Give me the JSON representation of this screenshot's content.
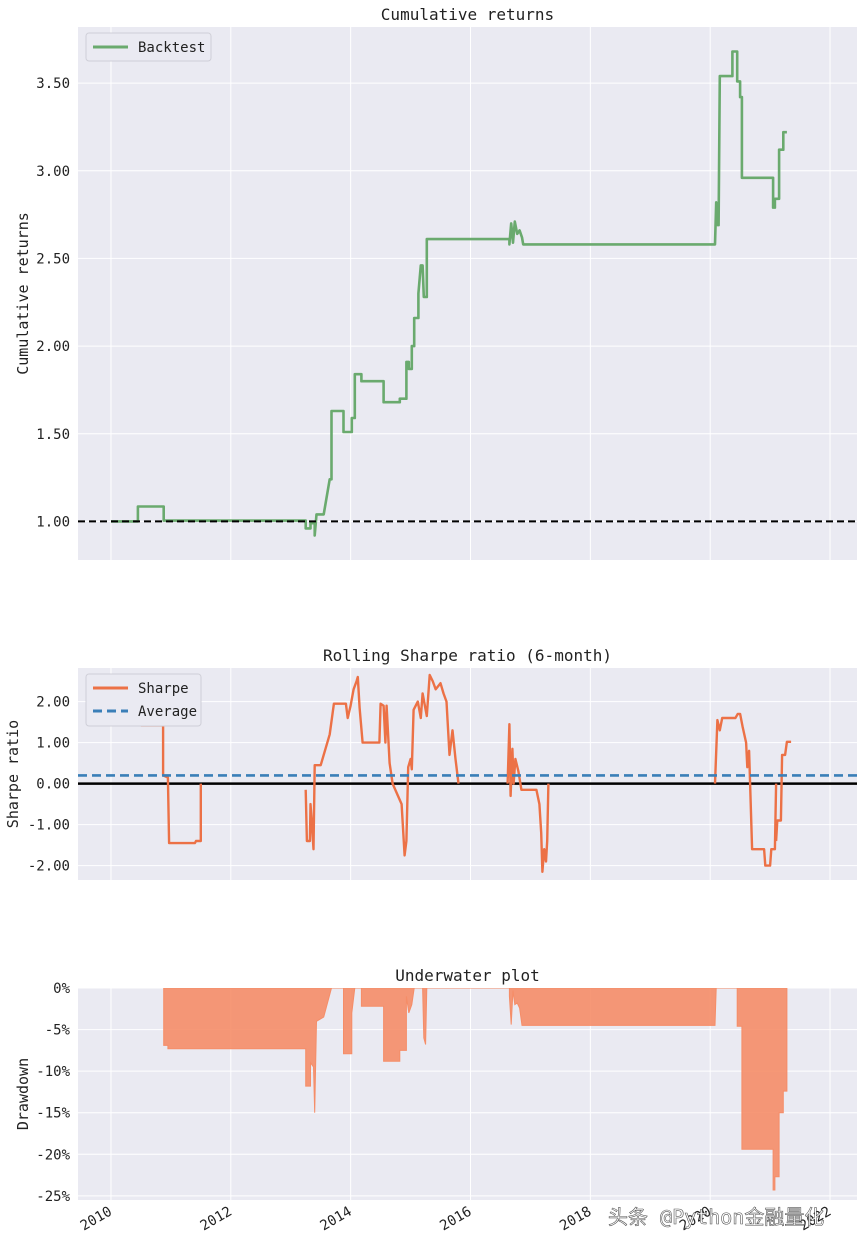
{
  "watermark": "头条 @Python金融量化",
  "colors": {
    "background": "#EAEAF2",
    "grid": "#FFFFFF",
    "backtest": "#6AAA6E",
    "sharpe": "#EC7146",
    "average": "#3A7FB8",
    "underwater_fill": "#F58D68",
    "baseline": "#000000"
  },
  "x_ticks": [
    "2010",
    "2012",
    "2014",
    "2016",
    "2018",
    "2020",
    "2022"
  ],
  "chart_data": [
    {
      "type": "line",
      "title": "Cumulative returns",
      "ylabel": "Cumulative returns",
      "xlabel": "",
      "xlim": [
        2009.45,
        2022.45
      ],
      "ylim": [
        0.78,
        3.82
      ],
      "y_ticks": [
        1.0,
        1.5,
        2.0,
        2.5,
        3.0,
        3.5
      ],
      "y_tick_labels": [
        "1.00",
        "1.50",
        "2.00",
        "2.50",
        "3.00",
        "3.50"
      ],
      "legend": [
        "Backtest"
      ],
      "legend_position": "top-left",
      "baseline": 1.0,
      "series": [
        {
          "name": "Backtest",
          "points": [
            [
              2010.0,
              1.0
            ],
            [
              2010.45,
              1.0
            ],
            [
              2010.45,
              1.085
            ],
            [
              2010.88,
              1.085
            ],
            [
              2010.88,
              1.005
            ],
            [
              2013.25,
              1.005
            ],
            [
              2013.25,
              0.96
            ],
            [
              2013.33,
              0.96
            ],
            [
              2013.33,
              0.99
            ],
            [
              2013.4,
              0.99
            ],
            [
              2013.4,
              0.92
            ],
            [
              2013.43,
              1.04
            ],
            [
              2013.55,
              1.04
            ],
            [
              2013.65,
              1.24
            ],
            [
              2013.68,
              1.24
            ],
            [
              2013.68,
              1.63
            ],
            [
              2013.88,
              1.63
            ],
            [
              2013.88,
              1.51
            ],
            [
              2014.02,
              1.51
            ],
            [
              2014.02,
              1.59
            ],
            [
              2014.07,
              1.59
            ],
            [
              2014.07,
              1.84
            ],
            [
              2014.18,
              1.84
            ],
            [
              2014.18,
              1.8
            ],
            [
              2014.55,
              1.8
            ],
            [
              2014.55,
              1.68
            ],
            [
              2014.82,
              1.68
            ],
            [
              2014.82,
              1.7
            ],
            [
              2014.93,
              1.7
            ],
            [
              2014.93,
              1.91
            ],
            [
              2014.97,
              1.91
            ],
            [
              2014.97,
              1.87
            ],
            [
              2015.02,
              1.87
            ],
            [
              2015.02,
              2.0
            ],
            [
              2015.06,
              2.0
            ],
            [
              2015.06,
              2.16
            ],
            [
              2015.13,
              2.16
            ],
            [
              2015.13,
              2.3
            ],
            [
              2015.17,
              2.46
            ],
            [
              2015.2,
              2.46
            ],
            [
              2015.22,
              2.28
            ],
            [
              2015.27,
              2.28
            ],
            [
              2015.27,
              2.61
            ],
            [
              2016.65,
              2.61
            ],
            [
              2016.65,
              2.58
            ],
            [
              2016.68,
              2.7
            ],
            [
              2016.71,
              2.59
            ],
            [
              2016.74,
              2.71
            ],
            [
              2016.78,
              2.64
            ],
            [
              2016.82,
              2.66
            ],
            [
              2016.86,
              2.62
            ],
            [
              2016.88,
              2.58
            ],
            [
              2020.08,
              2.58
            ],
            [
              2020.1,
              2.82
            ],
            [
              2020.12,
              2.69
            ],
            [
              2020.14,
              2.69
            ],
            [
              2020.16,
              3.54
            ],
            [
              2020.37,
              3.54
            ],
            [
              2020.37,
              3.68
            ],
            [
              2020.45,
              3.68
            ],
            [
              2020.45,
              3.51
            ],
            [
              2020.5,
              3.51
            ],
            [
              2020.5,
              3.42
            ],
            [
              2020.53,
              3.42
            ],
            [
              2020.53,
              2.96
            ],
            [
              2021.0,
              2.96
            ],
            [
              2021.05,
              2.96
            ],
            [
              2021.05,
              2.79
            ],
            [
              2021.08,
              2.79
            ],
            [
              2021.08,
              2.84
            ],
            [
              2021.15,
              2.84
            ],
            [
              2021.15,
              3.12
            ],
            [
              2021.22,
              3.12
            ],
            [
              2021.22,
              3.22
            ],
            [
              2021.28,
              3.22
            ]
          ]
        }
      ]
    },
    {
      "type": "line",
      "title": "Rolling Sharpe ratio (6-month)",
      "ylabel": "Sharpe ratio",
      "xlabel": "",
      "xlim": [
        2009.45,
        2022.45
      ],
      "ylim": [
        -2.35,
        2.82
      ],
      "y_ticks": [
        -2.0,
        -1.0,
        0.0,
        1.0,
        2.0
      ],
      "y_tick_labels": [
        "-2.00",
        "-1.00",
        "0.00",
        "1.00",
        "2.00"
      ],
      "legend": [
        "Sharpe",
        "Average"
      ],
      "legend_position": "top-left",
      "average": 0.2,
      "baseline": 0.0,
      "series": [
        {
          "name": "Sharpe",
          "points": [
            [
              2010.5,
              1.42
            ],
            [
              2010.87,
              1.42
            ],
            [
              2010.87,
              0.2
            ],
            [
              2010.95,
              0.15
            ],
            [
              2010.97,
              -1.45
            ],
            [
              2011.4,
              -1.45
            ],
            [
              2011.42,
              -1.4
            ],
            [
              2011.5,
              -1.4
            ],
            [
              2011.5,
              0.0
            ]
          ]
        },
        {
          "name": "Sharpe",
          "points": [
            [
              2013.25,
              -0.15
            ],
            [
              2013.27,
              -1.4
            ],
            [
              2013.32,
              -1.4
            ],
            [
              2013.33,
              -0.5
            ],
            [
              2013.35,
              -0.9
            ],
            [
              2013.38,
              -1.6
            ],
            [
              2013.4,
              0.45
            ],
            [
              2013.5,
              0.45
            ],
            [
              2013.65,
              1.2
            ],
            [
              2013.72,
              1.95
            ],
            [
              2013.92,
              1.95
            ],
            [
              2013.95,
              1.6
            ],
            [
              2014.0,
              1.9
            ],
            [
              2014.05,
              2.3
            ],
            [
              2014.1,
              2.5
            ],
            [
              2014.12,
              2.6
            ],
            [
              2014.15,
              1.85
            ],
            [
              2014.2,
              1.0
            ],
            [
              2014.48,
              1.0
            ],
            [
              2014.5,
              1.95
            ],
            [
              2014.55,
              1.9
            ],
            [
              2014.58,
              1.0
            ],
            [
              2014.6,
              1.9
            ],
            [
              2014.65,
              0.5
            ],
            [
              2014.7,
              0.0
            ],
            [
              2014.85,
              -0.5
            ],
            [
              2014.9,
              -1.75
            ],
            [
              2014.93,
              -1.4
            ],
            [
              2014.96,
              0.4
            ],
            [
              2015.0,
              0.6
            ],
            [
              2015.02,
              0.35
            ],
            [
              2015.05,
              1.8
            ],
            [
              2015.12,
              2.0
            ],
            [
              2015.17,
              1.6
            ],
            [
              2015.2,
              2.2
            ],
            [
              2015.27,
              1.65
            ],
            [
              2015.32,
              2.65
            ],
            [
              2015.37,
              2.5
            ],
            [
              2015.42,
              2.3
            ],
            [
              2015.5,
              2.45
            ],
            [
              2015.55,
              2.2
            ],
            [
              2015.6,
              2.0
            ],
            [
              2015.65,
              0.7
            ],
            [
              2015.7,
              1.3
            ],
            [
              2015.75,
              0.6
            ],
            [
              2015.8,
              0.0
            ]
          ]
        },
        {
          "name": "Sharpe",
          "points": [
            [
              2016.62,
              0.0
            ],
            [
              2016.65,
              1.45
            ],
            [
              2016.67,
              -0.3
            ],
            [
              2016.7,
              0.85
            ],
            [
              2016.72,
              0.0
            ],
            [
              2016.75,
              0.6
            ],
            [
              2016.8,
              0.3
            ],
            [
              2016.85,
              -0.15
            ],
            [
              2017.1,
              -0.15
            ],
            [
              2017.15,
              -0.5
            ],
            [
              2017.18,
              -1.2
            ],
            [
              2017.2,
              -2.15
            ],
            [
              2017.23,
              -1.6
            ],
            [
              2017.26,
              -1.9
            ],
            [
              2017.28,
              -1.4
            ],
            [
              2017.3,
              0.0
            ]
          ]
        },
        {
          "name": "Sharpe",
          "points": [
            [
              2020.08,
              0.0
            ],
            [
              2020.12,
              1.55
            ],
            [
              2020.16,
              1.3
            ],
            [
              2020.2,
              1.6
            ],
            [
              2020.42,
              1.6
            ],
            [
              2020.46,
              1.7
            ],
            [
              2020.5,
              1.7
            ],
            [
              2020.54,
              1.4
            ],
            [
              2020.6,
              1.0
            ],
            [
              2020.62,
              0.4
            ],
            [
              2020.65,
              0.8
            ],
            [
              2020.7,
              -1.6
            ],
            [
              2020.9,
              -1.6
            ],
            [
              2020.92,
              -2.0
            ],
            [
              2021.0,
              -2.0
            ],
            [
              2021.02,
              -1.6
            ],
            [
              2021.08,
              -1.6
            ],
            [
              2021.1,
              0.0
            ]
          ]
        },
        {
          "name": "Sharpe",
          "points": [
            [
              2021.1,
              -1.4
            ],
            [
              2021.12,
              -0.9
            ],
            [
              2021.18,
              -0.9
            ],
            [
              2021.2,
              0.7
            ],
            [
              2021.25,
              0.7
            ],
            [
              2021.28,
              1.02
            ],
            [
              2021.35,
              1.02
            ]
          ]
        }
      ]
    },
    {
      "type": "area",
      "title": "Underwater plot",
      "ylabel": "Drawdown",
      "xlabel": "",
      "xlim": [
        2009.45,
        2022.45
      ],
      "ylim": [
        -25.5,
        0.0
      ],
      "y_ticks": [
        0,
        -5,
        -10,
        -15,
        -20,
        -25
      ],
      "y_tick_labels": [
        "0%",
        "-5%",
        "-10%",
        "-15%",
        "-20%",
        "-25%"
      ],
      "series": [
        {
          "name": "Drawdown (%)",
          "points": [
            [
              2010.88,
              0.0
            ],
            [
              2010.88,
              -6.9
            ],
            [
              2010.95,
              -6.9
            ],
            [
              2010.95,
              -7.3
            ],
            [
              2013.25,
              -7.3
            ],
            [
              2013.25,
              -11.8
            ],
            [
              2013.33,
              -11.8
            ],
            [
              2013.33,
              -9.0
            ],
            [
              2013.38,
              -9.5
            ],
            [
              2013.4,
              -15.0
            ],
            [
              2013.43,
              -4.0
            ],
            [
              2013.55,
              -3.5
            ],
            [
              2013.68,
              0.0
            ],
            [
              2013.88,
              0.0
            ],
            [
              2013.88,
              -7.9
            ],
            [
              2014.02,
              -7.9
            ],
            [
              2014.02,
              -3.0
            ],
            [
              2014.07,
              0.0
            ],
            [
              2014.18,
              0.0
            ],
            [
              2014.18,
              -2.2
            ],
            [
              2014.55,
              -2.2
            ],
            [
              2014.55,
              -8.8
            ],
            [
              2014.82,
              -8.8
            ],
            [
              2014.82,
              -7.5
            ],
            [
              2014.93,
              -7.5
            ],
            [
              2014.93,
              -1.0
            ],
            [
              2014.97,
              -3.0
            ],
            [
              2015.02,
              -2.0
            ],
            [
              2015.06,
              0.0
            ],
            [
              2015.2,
              0.0
            ],
            [
              2015.22,
              -6.0
            ],
            [
              2015.25,
              -6.8
            ],
            [
              2015.27,
              0.0
            ],
            [
              2016.65,
              0.0
            ],
            [
              2016.65,
              -1.0
            ],
            [
              2016.68,
              -4.4
            ],
            [
              2016.71,
              -0.3
            ],
            [
              2016.74,
              -2.0
            ],
            [
              2016.78,
              -1.8
            ],
            [
              2016.82,
              -2.4
            ],
            [
              2016.86,
              -4.5
            ],
            [
              2020.08,
              -4.5
            ],
            [
              2020.1,
              0.0
            ],
            [
              2020.37,
              0.0
            ],
            [
              2020.45,
              0.0
            ],
            [
              2020.45,
              -4.6
            ],
            [
              2020.53,
              -4.6
            ],
            [
              2020.53,
              -19.4
            ],
            [
              2021.05,
              -19.4
            ],
            [
              2021.05,
              -24.3
            ],
            [
              2021.08,
              -24.3
            ],
            [
              2021.08,
              -22.7
            ],
            [
              2021.15,
              -22.7
            ],
            [
              2021.15,
              -15.0
            ],
            [
              2021.22,
              -15.0
            ],
            [
              2021.22,
              -12.4
            ],
            [
              2021.28,
              -12.4
            ],
            [
              2021.28,
              0.0
            ]
          ]
        }
      ]
    }
  ]
}
